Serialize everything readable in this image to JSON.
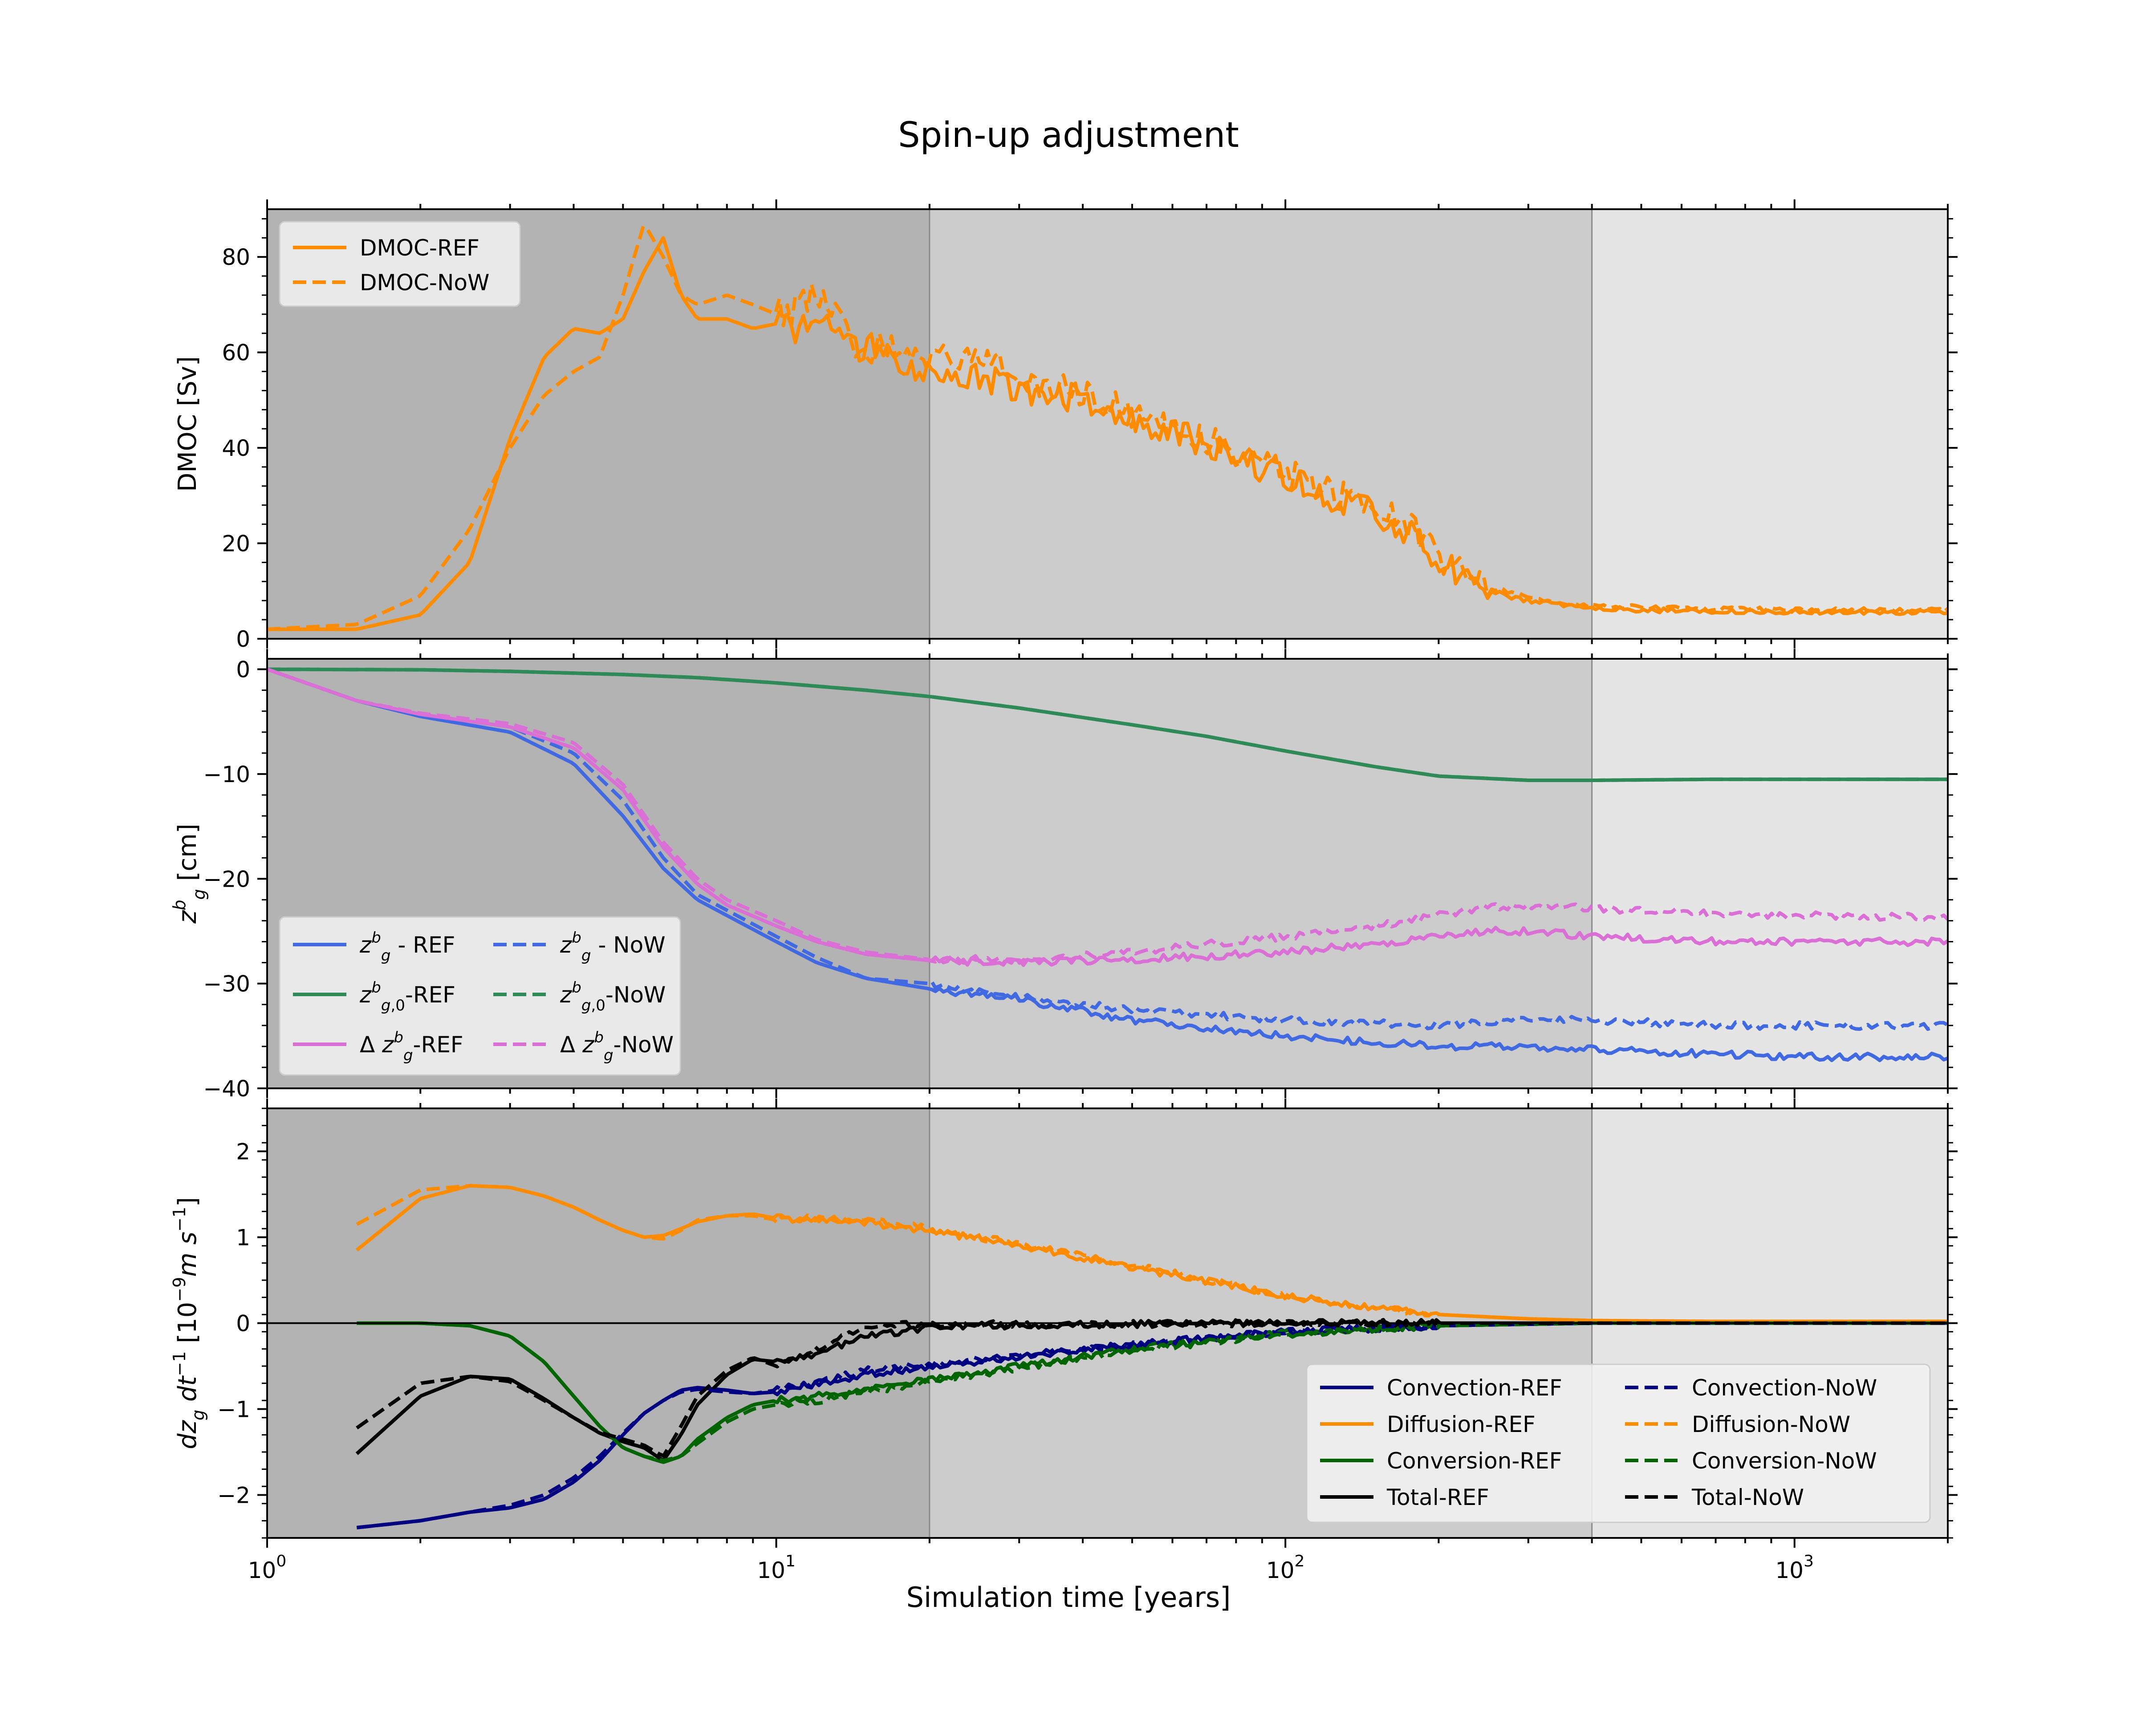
{
  "figure": {
    "title": "Spin-up adjustment",
    "xlabel": "Simulation time [years]"
  },
  "chart_data": [
    {
      "type": "line",
      "title": "",
      "xscale": "log",
      "xlim": [
        1,
        2000
      ],
      "ylim": [
        0,
        90
      ],
      "ylabel": "DMOC [Sv]",
      "yticks": [
        0,
        20,
        40,
        60,
        80
      ],
      "xtick_labels": [],
      "legend": {
        "position": "top-left",
        "ncol": 1
      },
      "shading": [
        {
          "from": 1,
          "to": 20,
          "color": "#b3b3b3"
        },
        {
          "from": 20,
          "to": 400,
          "color": "#cccccc"
        },
        {
          "from": 400,
          "to": 2000,
          "color": "#e5e5e5"
        }
      ],
      "series": [
        {
          "name": "DMOC-REF",
          "color": "#ff8c00",
          "dash": "solid",
          "noise": 0.0,
          "x": [
            1,
            1.5,
            2,
            2.5,
            3,
            3.5,
            4,
            4.5,
            5,
            5.5,
            6,
            6.5,
            7,
            8,
            9,
            10,
            11,
            12,
            13,
            14,
            15,
            16,
            18,
            20,
            25,
            30,
            40,
            50,
            60,
            70,
            80,
            100,
            120,
            150,
            180,
            200,
            250,
            300,
            400,
            500,
            700,
            1000,
            1500,
            2000
          ],
          "y": [
            2,
            2,
            5,
            16,
            42,
            59,
            65,
            64,
            67,
            77,
            84,
            72,
            67,
            67,
            65,
            66,
            65,
            68,
            66,
            62,
            60,
            62,
            58,
            56,
            55,
            52,
            50,
            46,
            43,
            41,
            38,
            34,
            30,
            26,
            21,
            16,
            10,
            8,
            6.5,
            6,
            5.8,
            5.7,
            5.6,
            5.5
          ]
        },
        {
          "name": "DMOC-NoW",
          "color": "#ff8c00",
          "dash": "dashed",
          "noise": 0.0,
          "x": [
            1,
            1.5,
            2,
            2.5,
            3,
            3.5,
            4,
            4.5,
            5,
            5.5,
            6,
            6.5,
            7,
            8,
            9,
            10,
            11,
            12,
            13,
            14,
            15,
            16,
            18,
            20,
            25,
            30,
            40,
            50,
            60,
            70,
            80,
            100,
            120,
            150,
            180,
            200,
            250,
            300,
            400,
            500,
            700,
            1000,
            1500,
            2000
          ],
          "y": [
            2,
            3,
            9,
            23,
            40,
            51,
            56,
            59,
            72,
            87,
            80,
            72,
            70,
            72,
            70,
            68,
            69,
            72,
            68,
            62,
            60,
            62,
            60,
            58,
            60,
            54,
            52,
            47,
            44,
            42,
            39,
            35,
            31,
            28,
            23,
            17,
            11,
            8.5,
            7,
            6.5,
            6.2,
            6.0,
            6.0,
            6.0
          ]
        }
      ]
    },
    {
      "type": "line",
      "title": "",
      "xscale": "log",
      "xlim": [
        1,
        2000
      ],
      "ylim": [
        -40,
        1
      ],
      "ylabel": "z_g^b [cm]",
      "yticks": [
        0,
        -10,
        -20,
        -30,
        -40
      ],
      "xtick_labels": [],
      "legend": {
        "position": "lower-left",
        "ncol": 2
      },
      "shading": [
        {
          "from": 1,
          "to": 20,
          "color": "#b3b3b3"
        },
        {
          "from": 20,
          "to": 400,
          "color": "#cccccc"
        },
        {
          "from": 400,
          "to": 2000,
          "color": "#e5e5e5"
        }
      ],
      "series": [
        {
          "name": "- REF",
          "name_sym": "z_g^b",
          "color": "#4169e1",
          "dash": "solid",
          "noise": 0.0,
          "x": [
            1,
            1.5,
            2,
            3,
            4,
            5,
            6,
            7,
            8,
            10,
            12,
            15,
            20,
            30,
            50,
            100,
            200,
            300,
            400,
            700,
            1000,
            2000
          ],
          "y": [
            0,
            -3,
            -4.5,
            -6,
            -9,
            -14,
            -19,
            -22,
            -23.5,
            -26,
            -28,
            -29.5,
            -30.5,
            -31.5,
            -33.5,
            -35,
            -36,
            -36,
            -36.3,
            -36.7,
            -37,
            -37
          ]
        },
        {
          "name": "- NoW",
          "name_sym": "z_g^b",
          "color": "#4169e1",
          "dash": "dashed",
          "noise": 0.0,
          "x": [
            1,
            1.5,
            2,
            3,
            4,
            5,
            6,
            7,
            8,
            10,
            12,
            15,
            20,
            30,
            50,
            100,
            200,
            300,
            400,
            700,
            1000,
            2000
          ],
          "y": [
            0,
            -3,
            -4.3,
            -5.5,
            -8,
            -12.5,
            -18,
            -21.5,
            -23,
            -25.5,
            -27.5,
            -29.5,
            -30,
            -31.3,
            -32.5,
            -33.5,
            -34,
            -33.5,
            -33.5,
            -34,
            -34,
            -34
          ]
        },
        {
          "name": "-REF",
          "name_sym": "z_{g,0}^b",
          "color": "#2e8b57",
          "dash": "solid",
          "noise": 0.0,
          "x": [
            1,
            2,
            3,
            5,
            7,
            10,
            15,
            20,
            30,
            50,
            70,
            100,
            150,
            200,
            300,
            400,
            700,
            1000,
            2000
          ],
          "y": [
            0,
            -0.05,
            -0.2,
            -0.5,
            -0.8,
            -1.3,
            -2,
            -2.6,
            -3.7,
            -5.3,
            -6.4,
            -7.8,
            -9.3,
            -10.2,
            -10.6,
            -10.6,
            -10.5,
            -10.5,
            -10.5
          ]
        },
        {
          "name": "-NoW",
          "name_sym": "z_{g,0}^b",
          "color": "#2e8b57",
          "dash": "dashed",
          "noise": 0.0,
          "x": [
            1,
            2,
            3,
            5,
            7,
            10,
            15,
            20,
            30,
            50,
            70,
            100,
            150,
            200,
            300,
            400,
            700,
            1000,
            2000
          ],
          "y": [
            0,
            -0.05,
            -0.2,
            -0.5,
            -0.8,
            -1.3,
            -2,
            -2.6,
            -3.7,
            -5.3,
            -6.4,
            -7.8,
            -9.3,
            -10.2,
            -10.6,
            -10.6,
            -10.5,
            -10.5,
            -10.5
          ]
        },
        {
          "name": "-REF",
          "name_sym": "Δ z_g^b",
          "color": "#da70d6",
          "dash": "solid",
          "noise": 0.0,
          "x": [
            1,
            1.5,
            2,
            3,
            4,
            5,
            6,
            7,
            8,
            10,
            12,
            15,
            20,
            30,
            50,
            100,
            150,
            200,
            250,
            300,
            400,
            700,
            1000,
            2000
          ],
          "y": [
            0,
            -3,
            -4.3,
            -5.5,
            -7.5,
            -11.5,
            -17,
            -20.5,
            -22.5,
            -24.5,
            -26,
            -27.2,
            -27.8,
            -28,
            -27.7,
            -27,
            -26.2,
            -25.5,
            -25,
            -25,
            -25.5,
            -26,
            -26,
            -26
          ]
        },
        {
          "name": "-NoW",
          "name_sym": "Δ z_g^b",
          "color": "#da70d6",
          "dash": "dashed",
          "noise": 0.0,
          "x": [
            1,
            1.5,
            2,
            3,
            4,
            5,
            6,
            7,
            8,
            10,
            12,
            15,
            20,
            30,
            50,
            100,
            150,
            200,
            250,
            300,
            400,
            700,
            1000,
            2000
          ],
          "y": [
            0,
            -3,
            -4.2,
            -5.2,
            -7,
            -11,
            -16.5,
            -20,
            -22,
            -24,
            -25.8,
            -27,
            -27.7,
            -27.7,
            -27,
            -25.5,
            -24.5,
            -23.5,
            -22.7,
            -22.5,
            -22.8,
            -23.3,
            -23.5,
            -23.7
          ]
        }
      ]
    },
    {
      "type": "line",
      "title": "",
      "xscale": "log",
      "xlim": [
        1,
        2000
      ],
      "ylim": [
        -2.5,
        2.5
      ],
      "ylabel": "dz_g dt^-1 [10^-9 m s^-1]",
      "yticks": [
        2,
        1,
        0,
        -1,
        -2
      ],
      "xticks": [
        1,
        10,
        100,
        1000
      ],
      "xtick_labels": [
        "10^0",
        "10^1",
        "10^2",
        "10^3"
      ],
      "legend": {
        "position": "lower-right",
        "ncol": 2
      },
      "shading": [
        {
          "from": 1,
          "to": 20,
          "color": "#b3b3b3"
        },
        {
          "from": 20,
          "to": 400,
          "color": "#cccccc"
        },
        {
          "from": 400,
          "to": 2000,
          "color": "#e5e5e5"
        }
      ],
      "series": [
        {
          "name": "Convection-REF",
          "color": "#000080",
          "dash": "solid",
          "x": [
            1.5,
            2,
            2.5,
            3,
            3.5,
            4,
            4.5,
            5,
            5.5,
            6,
            6.5,
            7,
            8,
            9,
            10,
            12,
            15,
            20,
            30,
            50,
            100,
            200,
            400,
            1000,
            2000
          ],
          "y": [
            -2.38,
            -2.3,
            -2.2,
            -2.15,
            -2.05,
            -1.85,
            -1.6,
            -1.3,
            -1.05,
            -0.9,
            -0.78,
            -0.75,
            -0.78,
            -0.82,
            -0.8,
            -0.7,
            -0.6,
            -0.52,
            -0.4,
            -0.25,
            -0.1,
            -0.03,
            0,
            0,
            0
          ]
        },
        {
          "name": "Diffusion-REF",
          "color": "#ff8c00",
          "dash": "solid",
          "x": [
            1.5,
            2,
            2.5,
            3,
            3.5,
            4,
            4.5,
            5,
            5.5,
            6,
            6.5,
            7,
            8,
            9,
            10,
            12,
            15,
            20,
            30,
            50,
            100,
            150,
            200,
            300,
            400,
            700,
            1000,
            2000
          ],
          "y": [
            0.85,
            1.45,
            1.6,
            1.58,
            1.48,
            1.35,
            1.2,
            1.08,
            1.0,
            1.02,
            1.1,
            1.18,
            1.25,
            1.27,
            1.22,
            1.2,
            1.17,
            1.08,
            0.9,
            0.65,
            0.32,
            0.17,
            0.1,
            0.05,
            0.03,
            0.02,
            0.02,
            0.02
          ]
        },
        {
          "name": "Conversion-REF",
          "color": "#006400",
          "dash": "solid",
          "x": [
            1.5,
            2,
            2.5,
            3,
            3.5,
            4,
            4.5,
            5,
            5.5,
            6,
            6.5,
            7,
            8,
            9,
            10,
            12,
            15,
            20,
            30,
            50,
            100,
            200,
            400,
            1000,
            2000
          ],
          "y": [
            0,
            0,
            -0.03,
            -0.15,
            -0.45,
            -0.85,
            -1.2,
            -1.45,
            -1.55,
            -1.62,
            -1.55,
            -1.35,
            -1.1,
            -0.95,
            -0.9,
            -0.85,
            -0.78,
            -0.65,
            -0.5,
            -0.3,
            -0.12,
            -0.03,
            0,
            0,
            0
          ]
        },
        {
          "name": "Total-REF",
          "color": "#000000",
          "dash": "solid",
          "x": [
            1.5,
            2,
            2.5,
            3,
            3.5,
            4,
            4.5,
            5,
            5.5,
            6,
            6.5,
            7,
            8,
            9,
            10,
            12,
            15,
            20,
            30,
            50,
            100,
            200,
            400,
            1000,
            2000
          ],
          "y": [
            -1.52,
            -0.85,
            -0.62,
            -0.65,
            -0.88,
            -1.1,
            -1.28,
            -1.38,
            -1.45,
            -1.6,
            -1.3,
            -0.95,
            -0.6,
            -0.42,
            -0.45,
            -0.35,
            -0.15,
            -0.05,
            -0.02,
            -0.01,
            0,
            0,
            0,
            0,
            0
          ]
        },
        {
          "name": "Convection-NoW",
          "color": "#000080",
          "dash": "dashed",
          "x": [
            1.5,
            2,
            2.5,
            3,
            3.5,
            4,
            4.5,
            5,
            5.5,
            6,
            6.5,
            7,
            8,
            9,
            10,
            12,
            15,
            20,
            30,
            50,
            100,
            200,
            400,
            1000,
            2000
          ],
          "y": [
            -2.38,
            -2.3,
            -2.2,
            -2.12,
            -2.0,
            -1.8,
            -1.55,
            -1.28,
            -1.05,
            -0.9,
            -0.8,
            -0.77,
            -0.8,
            -0.82,
            -0.78,
            -0.68,
            -0.55,
            -0.48,
            -0.38,
            -0.25,
            -0.1,
            -0.03,
            0,
            0,
            0
          ]
        },
        {
          "name": "Diffusion-NoW",
          "color": "#ff8c00",
          "dash": "dashed",
          "x": [
            1.5,
            2,
            2.5,
            3,
            3.5,
            4,
            4.5,
            5,
            5.5,
            6,
            6.5,
            7,
            8,
            9,
            10,
            12,
            15,
            20,
            30,
            50,
            100,
            150,
            200,
            300,
            400,
            700,
            1000,
            2000
          ],
          "y": [
            1.15,
            1.55,
            1.6,
            1.58,
            1.48,
            1.35,
            1.2,
            1.08,
            1.0,
            0.98,
            1.08,
            1.2,
            1.25,
            1.25,
            1.2,
            1.22,
            1.2,
            1.1,
            0.92,
            0.68,
            0.32,
            0.17,
            0.1,
            0.05,
            0.03,
            0.02,
            0.02,
            0.02
          ]
        },
        {
          "name": "Conversion-NoW",
          "color": "#006400",
          "dash": "dashed",
          "x": [
            1.5,
            2,
            2.5,
            3,
            3.5,
            4,
            4.5,
            5,
            5.5,
            6,
            6.5,
            7,
            8,
            9,
            10,
            12,
            15,
            20,
            30,
            50,
            100,
            200,
            400,
            1000,
            2000
          ],
          "y": [
            0,
            0,
            -0.03,
            -0.15,
            -0.45,
            -0.85,
            -1.2,
            -1.45,
            -1.55,
            -1.6,
            -1.55,
            -1.4,
            -1.15,
            -1.0,
            -0.95,
            -0.9,
            -0.8,
            -0.68,
            -0.52,
            -0.32,
            -0.13,
            -0.03,
            0,
            0,
            0
          ]
        },
        {
          "name": "Total-NoW",
          "color": "#000000",
          "dash": "dashed",
          "x": [
            1.5,
            2,
            2.5,
            3,
            3.5,
            4,
            4.5,
            5,
            5.5,
            6,
            6.5,
            7,
            8,
            9,
            10,
            12,
            15,
            20,
            30,
            50,
            100,
            200,
            400,
            1000,
            2000
          ],
          "y": [
            -1.22,
            -0.7,
            -0.62,
            -0.68,
            -0.9,
            -1.1,
            -1.27,
            -1.35,
            -1.42,
            -1.55,
            -1.2,
            -0.85,
            -0.55,
            -0.4,
            -0.5,
            -0.3,
            -0.05,
            0,
            -0.02,
            -0.01,
            0,
            0,
            0,
            0,
            0
          ]
        }
      ]
    }
  ]
}
